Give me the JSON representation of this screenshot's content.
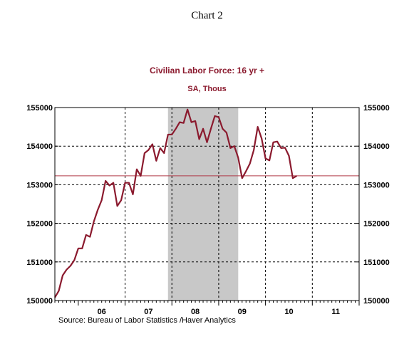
{
  "page_title": "Chart 2",
  "chart_data": {
    "type": "line",
    "title": "Civilian Labor Force: 16 yr +",
    "subtitle": "SA, Thous",
    "source": "Source:  Bureau of Labor Statistics /Haver Analytics",
    "xlabel": "",
    "ylabel": "",
    "ylim": [
      150000,
      155000
    ],
    "yticks": [
      150000,
      151000,
      152000,
      153000,
      154000,
      155000
    ],
    "ytick_labels": [
      "150000",
      "151000",
      "152000",
      "153000",
      "154000",
      "155000"
    ],
    "xlim": [
      2005.5,
      2012.0
    ],
    "xtick_labels": [
      "06",
      "07",
      "08",
      "09",
      "10",
      "11"
    ],
    "grid": "dashed at year boundaries and 1000 steps",
    "recession_shading": {
      "start": "2007-12",
      "end": "2009-06",
      "color": "#c8c8c8"
    },
    "reference_line": {
      "value": 153230,
      "color": "#b03a48"
    },
    "series": [
      {
        "color": "#8b1a2e",
        "start": "2005-07",
        "frequency": "monthly",
        "values": [
          150080,
          150250,
          150650,
          150800,
          150900,
          151050,
          151350,
          151350,
          151700,
          151650,
          152050,
          152350,
          152600,
          153100,
          152980,
          153050,
          152450,
          152600,
          153050,
          153050,
          152750,
          153400,
          153230,
          153820,
          153900,
          154050,
          153620,
          153950,
          153820,
          154300,
          154300,
          154450,
          154620,
          154600,
          154950,
          154620,
          154650,
          154180,
          154450,
          154100,
          154450,
          154780,
          154750,
          154450,
          154350,
          153950,
          154000,
          153700,
          153170,
          153350,
          153550,
          153900,
          154500,
          154200,
          153680,
          153630,
          154100,
          154120,
          153950,
          153960,
          153750,
          153170,
          153230
        ]
      }
    ]
  }
}
